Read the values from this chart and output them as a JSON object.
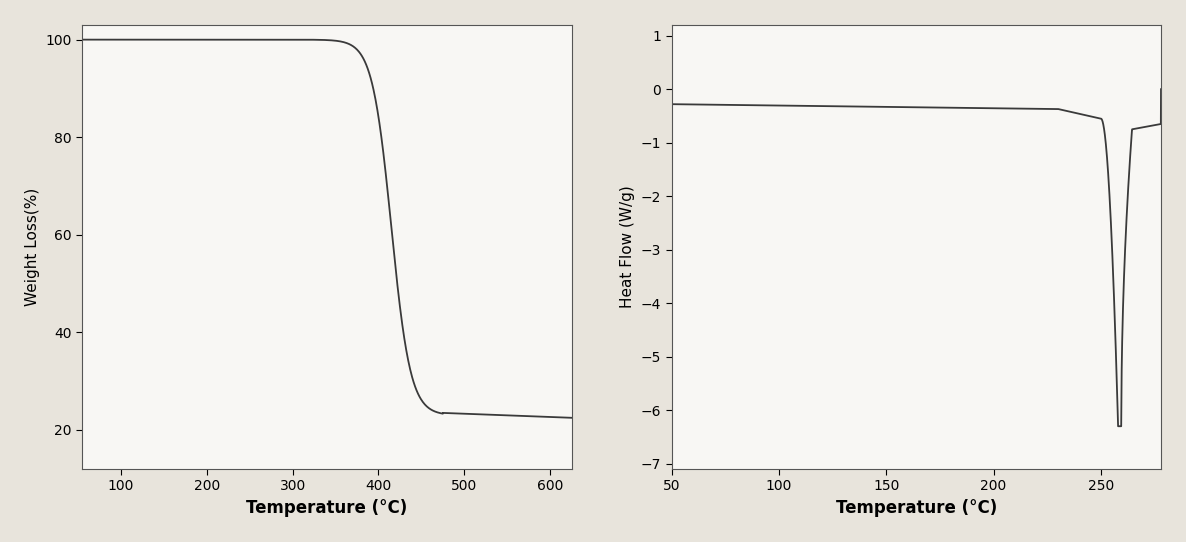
{
  "tga": {
    "xlabel": "Temperature (°C)",
    "ylabel": "Weight Loss(%)",
    "xlim": [
      55,
      625
    ],
    "ylim": [
      12,
      103
    ],
    "xticks": [
      100,
      200,
      300,
      400,
      500,
      600
    ],
    "yticks": [
      20,
      40,
      60,
      80,
      100
    ],
    "line_color": "#3a3a3a",
    "line_width": 1.3
  },
  "dsc": {
    "xlabel": "Temperature (°C)",
    "ylabel": "Heat Flow (W/g)",
    "xlim": [
      50,
      278
    ],
    "ylim": [
      -7.1,
      1.2
    ],
    "xticks": [
      50,
      100,
      150,
      200,
      250
    ],
    "yticks": [
      -7,
      -6,
      -5,
      -4,
      -3,
      -2,
      -1,
      0,
      1
    ],
    "line_color": "#3a3a3a",
    "line_width": 1.3
  },
  "fig_bg_color": "#e8e4dc",
  "plot_bg_color": "#f8f7f4",
  "xlabel_fontsize": 12,
  "ylabel_fontsize": 11,
  "tick_fontsize": 10
}
